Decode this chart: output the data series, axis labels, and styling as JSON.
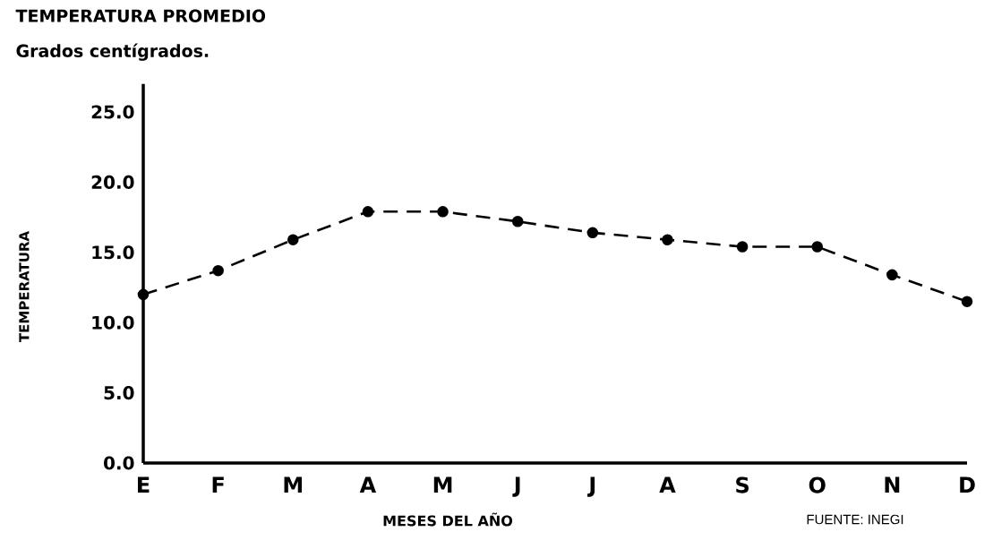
{
  "chart_data": {
    "type": "line",
    "title": "TEMPERATURA PROMEDIO",
    "subtitle": "Grados centígrados.",
    "xlabel": "MESES DEL AÑO",
    "ylabel": "TEMPERATURA",
    "annotations": [
      "FUENTE: INEGI"
    ],
    "categories": [
      "E",
      "F",
      "M",
      "A",
      "M",
      "J",
      "J",
      "A",
      "S",
      "O",
      "N",
      "D"
    ],
    "series": [
      {
        "color": "#000000",
        "values": [
          12.0,
          13.7,
          15.9,
          17.9,
          17.9,
          17.2,
          16.4,
          15.9,
          15.4,
          15.4,
          13.4,
          11.5
        ]
      }
    ],
    "ylim": [
      0,
      27
    ],
    "yticks": [
      {
        "value": 0,
        "label": "0.0"
      },
      {
        "value": 5,
        "label": "5.0"
      },
      {
        "value": 10,
        "label": "10.0"
      },
      {
        "value": 15,
        "label": "15.0"
      },
      {
        "value": 20,
        "label": "20.0"
      },
      {
        "value": 25,
        "label": "25.0"
      }
    ],
    "marker": "circle",
    "line_style": "dashed",
    "grid": false
  }
}
